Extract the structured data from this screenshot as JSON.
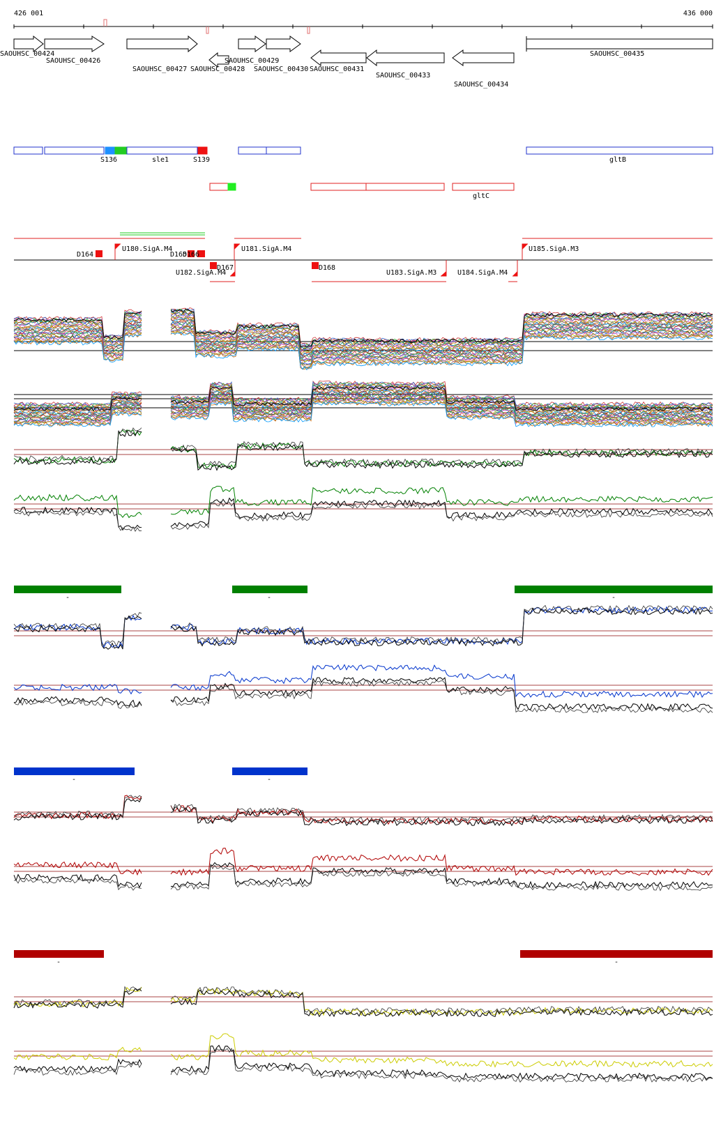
{
  "ruler": {
    "start_label": "426 001",
    "end_label": "436 000"
  },
  "genes": [
    {
      "id": "g424",
      "label": "SAOUHSC_00424",
      "strand": "+"
    },
    {
      "id": "g426",
      "label": "SAOUHSC_00426",
      "strand": "+"
    },
    {
      "id": "g427",
      "label": "SAOUHSC_00427",
      "strand": "+"
    },
    {
      "id": "g428",
      "label": "SAOUHSC_00428",
      "strand": "-"
    },
    {
      "id": "g429",
      "label": "SAOUHSC_00429",
      "strand": "+"
    },
    {
      "id": "g430",
      "label": "SAOUHSC_00430",
      "strand": "+"
    },
    {
      "id": "g431",
      "label": "SAOUHSC_00431",
      "strand": "-"
    },
    {
      "id": "g433",
      "label": "SAOUHSC_00433",
      "strand": "-"
    },
    {
      "id": "g434",
      "label": "SAOUHSC_00434",
      "strand": "-"
    },
    {
      "id": "g435",
      "label": "SAOUHSC_00435",
      "strand": "+"
    }
  ],
  "plus_features": [
    "S136",
    "sle1",
    "S139",
    "gltB"
  ],
  "minus_features": [
    "gltC"
  ],
  "promoters": [
    "D164",
    "U180.SigA.M4",
    "D165",
    "D166",
    "U181.SigA.M4",
    "U185.SigA.M3",
    "D167",
    "U182.SigA.M4",
    "D168",
    "U183.SigA.M3",
    "U184.SigA.M4"
  ],
  "condition_markers": [
    "-",
    "-",
    "-",
    "-",
    "-",
    "-",
    "-",
    "-"
  ],
  "colors": {
    "green": "#008000",
    "blue": "#0033cc",
    "darkred": "#b00000",
    "yellow": "#cccc00",
    "feature_blue": "#2233cc",
    "feature_red": "#e02020"
  }
}
